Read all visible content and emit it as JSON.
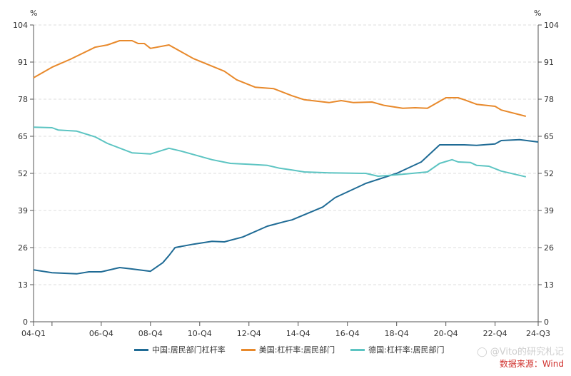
{
  "chart_data": {
    "type": "line",
    "unit_left": "%",
    "unit_right": "%",
    "ylim": [
      0,
      104
    ],
    "yticks": [
      0,
      13,
      26,
      39,
      52,
      65,
      78,
      91,
      104
    ],
    "xticks": [
      "04-Q1",
      "06-Q4",
      "08-Q4",
      "10-Q4",
      "12-Q4",
      "14-Q4",
      "16-Q4",
      "18-Q4",
      "20-Q4",
      "22-Q4",
      "24-Q3"
    ],
    "grid": "horizontal dashed",
    "legend_position": "bottom",
    "series": [
      {
        "name": "中国:居民部门杠杆率",
        "color": "#1f6b95",
        "points": [
          [
            "04-Q1",
            18.2
          ],
          [
            "04-Q4",
            17.2
          ],
          [
            "05-Q4",
            16.8
          ],
          [
            "06-Q2",
            17.5
          ],
          [
            "06-Q4",
            17.5
          ],
          [
            "07-Q3",
            19.0
          ],
          [
            "08-Q1",
            18.5
          ],
          [
            "08-Q4",
            17.7
          ],
          [
            "09-Q2",
            20.7
          ],
          [
            "09-Q3",
            23.2
          ],
          [
            "09-Q4",
            26.0
          ],
          [
            "10-Q3",
            27.2
          ],
          [
            "11-Q2",
            28.2
          ],
          [
            "11-Q4",
            28.0
          ],
          [
            "12-Q3",
            29.7
          ],
          [
            "13-Q3",
            33.5
          ],
          [
            "14-Q2",
            35.2
          ],
          [
            "14-Q3",
            35.7
          ],
          [
            "15-Q4",
            40.2
          ],
          [
            "16-Q2",
            43.5
          ],
          [
            "17-Q3",
            48.5
          ],
          [
            "18-Q4",
            52.0
          ],
          [
            "19-Q4",
            56.0
          ],
          [
            "20-Q3",
            62.0
          ],
          [
            "21-Q3",
            62.0
          ],
          [
            "22-Q1",
            61.8
          ],
          [
            "22-Q4",
            62.3
          ],
          [
            "23-Q1",
            63.5
          ],
          [
            "23-Q4",
            63.8
          ],
          [
            "24-Q3",
            63.0
          ]
        ]
      },
      {
        "name": "美国:杠杆率:居民部门",
        "color": "#e8892b",
        "points": [
          [
            "04-Q1",
            85.5
          ],
          [
            "04-Q4",
            89.2
          ],
          [
            "05-Q3",
            92.0
          ],
          [
            "06-Q3",
            96.2
          ],
          [
            "07-Q1",
            97.0
          ],
          [
            "07-Q3",
            98.5
          ],
          [
            "08-Q1",
            98.5
          ],
          [
            "08-Q2",
            97.5
          ],
          [
            "08-Q3",
            97.5
          ],
          [
            "08-Q4",
            95.8
          ],
          [
            "09-Q3",
            97.0
          ],
          [
            "10-Q3",
            92.2
          ],
          [
            "11-Q4",
            87.8
          ],
          [
            "12-Q2",
            84.8
          ],
          [
            "13-Q1",
            82.2
          ],
          [
            "13-Q4",
            81.7
          ],
          [
            "14-Q3",
            79.2
          ],
          [
            "15-Q1",
            77.8
          ],
          [
            "16-Q1",
            76.8
          ],
          [
            "16-Q3",
            77.5
          ],
          [
            "17-Q1",
            76.8
          ],
          [
            "17-Q4",
            77.0
          ],
          [
            "18-Q2",
            75.8
          ],
          [
            "19-Q1",
            74.8
          ],
          [
            "19-Q3",
            75.0
          ],
          [
            "20-Q1",
            74.8
          ],
          [
            "20-Q4",
            78.5
          ],
          [
            "21-Q2",
            78.5
          ],
          [
            "21-Q3",
            77.8
          ],
          [
            "22-Q1",
            76.2
          ],
          [
            "22-Q4",
            75.5
          ],
          [
            "23-Q1",
            74.2
          ],
          [
            "24-Q1",
            72.0
          ]
        ]
      },
      {
        "name": "德国:杠杆率:居民部门",
        "color": "#5cc4c2",
        "points": [
          [
            "04-Q1",
            68.2
          ],
          [
            "04-Q4",
            68.0
          ],
          [
            "05-Q1",
            67.2
          ],
          [
            "05-Q4",
            66.8
          ],
          [
            "06-Q3",
            64.8
          ],
          [
            "07-Q1",
            62.5
          ],
          [
            "08-Q1",
            59.2
          ],
          [
            "08-Q4",
            58.8
          ],
          [
            "09-Q3",
            60.8
          ],
          [
            "10-Q1",
            59.8
          ],
          [
            "11-Q2",
            56.8
          ],
          [
            "12-Q1",
            55.5
          ],
          [
            "12-Q4",
            55.2
          ],
          [
            "13-Q3",
            54.8
          ],
          [
            "14-Q1",
            53.8
          ],
          [
            "14-Q3",
            53.2
          ],
          [
            "15-Q1",
            52.5
          ],
          [
            "16-Q1",
            52.2
          ],
          [
            "17-Q3",
            52.0
          ],
          [
            "18-Q1",
            51.0
          ],
          [
            "18-Q4",
            51.5
          ],
          [
            "20-Q1",
            52.5
          ],
          [
            "20-Q3",
            55.5
          ],
          [
            "21-Q1",
            56.8
          ],
          [
            "21-Q2",
            56.0
          ],
          [
            "21-Q4",
            55.8
          ],
          [
            "22-Q1",
            54.8
          ],
          [
            "22-Q3",
            54.5
          ],
          [
            "23-Q1",
            52.8
          ],
          [
            "24-Q1",
            50.8
          ]
        ]
      }
    ]
  },
  "watermark": "@Vito的研究札记",
  "source": "数据来源：Wind"
}
